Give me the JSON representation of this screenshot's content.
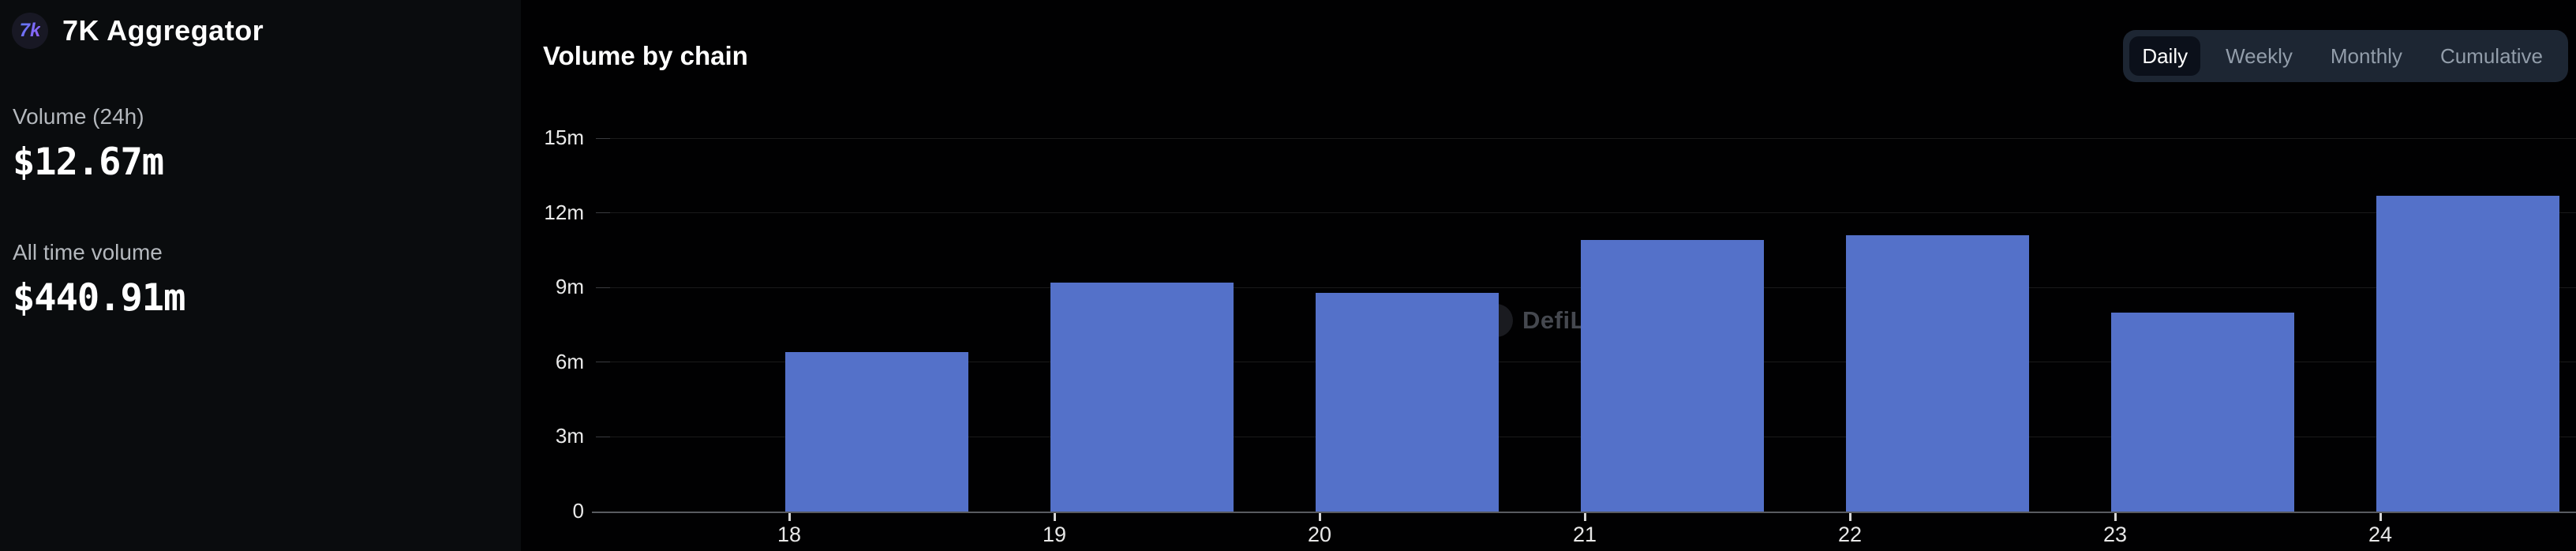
{
  "sidebar": {
    "logo_text": "7k",
    "title": "7K Aggregator",
    "stats": [
      {
        "label": "Volume (24h)",
        "value": "$12.67m"
      },
      {
        "label": "All time volume",
        "value": "$440.91m"
      }
    ]
  },
  "chart_panel": {
    "title": "Volume by chain",
    "range_tabs": [
      {
        "label": "Daily",
        "selected": true
      },
      {
        "label": "Weekly",
        "selected": false
      },
      {
        "label": "Monthly",
        "selected": false
      },
      {
        "label": "Cumulative",
        "selected": false
      }
    ],
    "watermark": "DefiLlama"
  },
  "chart_data": {
    "type": "bar",
    "title": "Volume by chain",
    "categories": [
      "18",
      "19",
      "20",
      "21",
      "22",
      "23",
      "24"
    ],
    "values": [
      6.4,
      9.2,
      8.8,
      10.9,
      11.1,
      8.0,
      12.67
    ],
    "unit": "m",
    "xlabel": "",
    "ylabel": "",
    "ylim": [
      0,
      15
    ],
    "yticks": [
      0,
      3,
      6,
      9,
      12,
      15
    ],
    "ytick_labels": [
      "0",
      "3m",
      "6m",
      "9m",
      "12m",
      "15m"
    ],
    "bar_color": "#5471c9",
    "grid": true,
    "legend": false
  },
  "colors": {
    "bar": "#5471c9",
    "sidebar_background": "#0a0c0e",
    "chart_background": "#010102",
    "tab_container": "#1d2633",
    "tab_active_background": "#0b101a",
    "muted_label": "#b4b8bd",
    "watermark_text": "#45484f"
  }
}
